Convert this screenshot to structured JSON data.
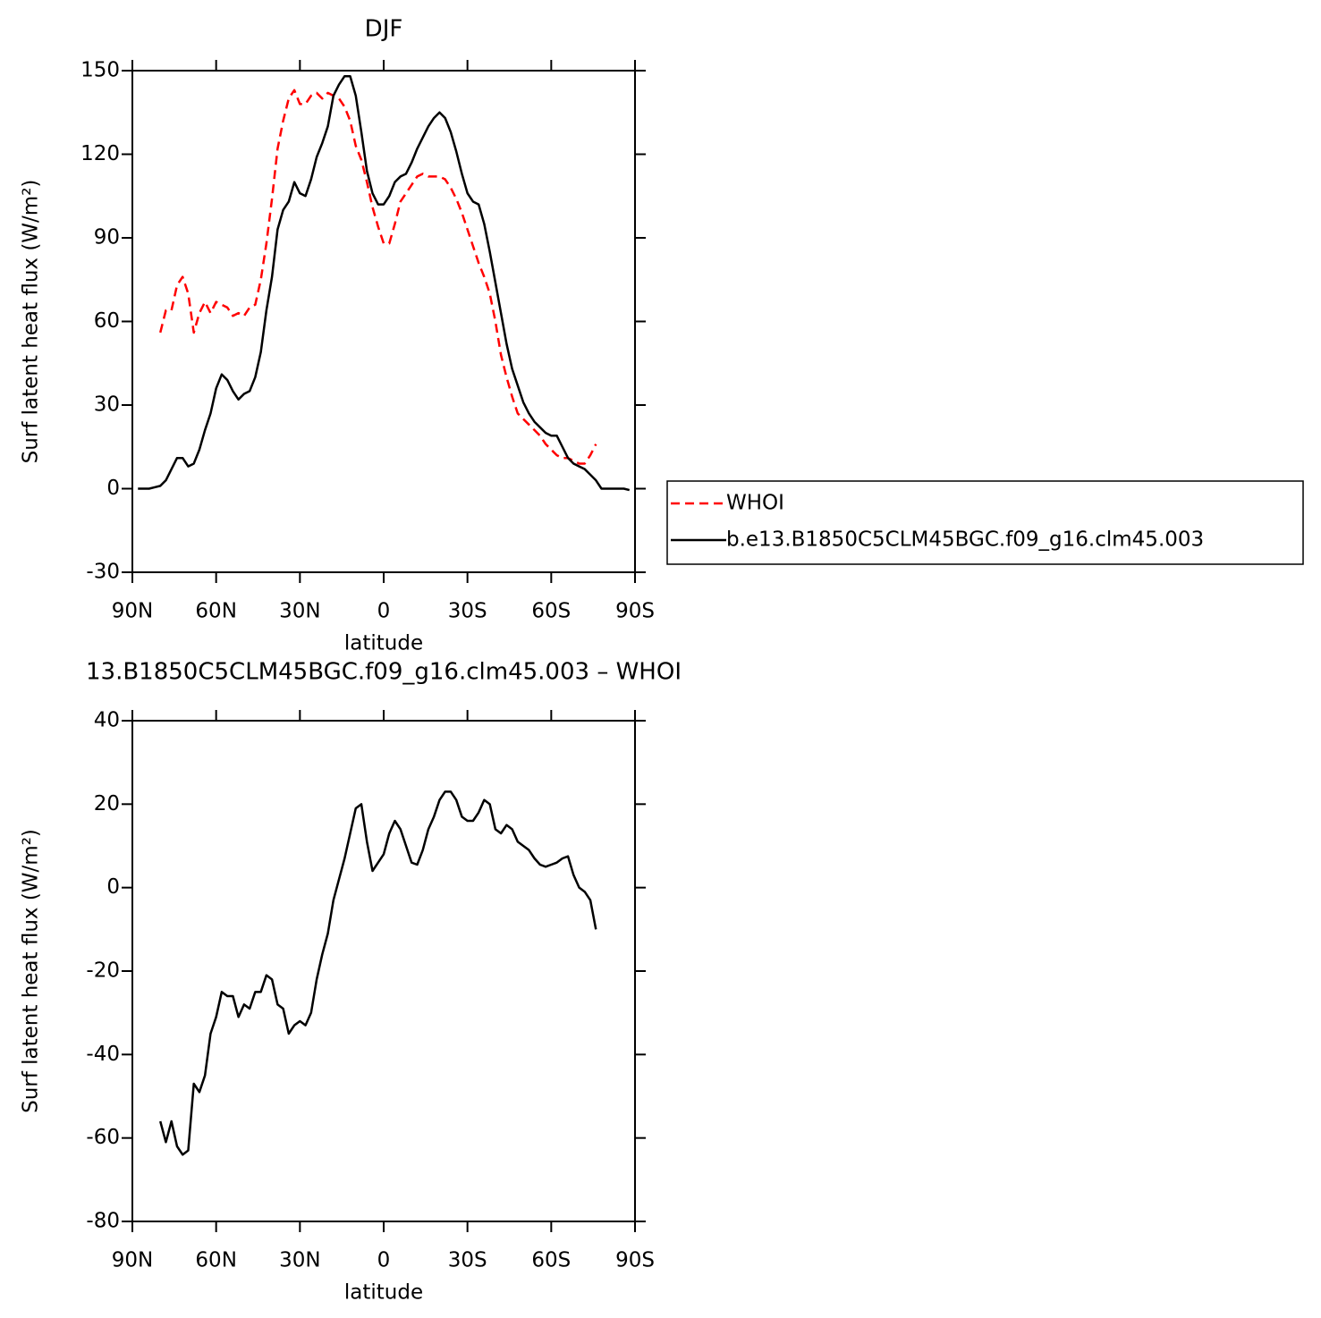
{
  "chart_data": [
    {
      "type": "line",
      "title": "DJF",
      "xlabel": "latitude",
      "ylabel": "Surf latent heat flux (W/m²)",
      "xlim": [
        90,
        -90
      ],
      "xticks": [
        {
          "value": 90,
          "label": "90N"
        },
        {
          "value": 60,
          "label": "60N"
        },
        {
          "value": 30,
          "label": "30N"
        },
        0,
        {
          "value": -30,
          "label": "30S"
        },
        {
          "value": -60,
          "label": "60S"
        },
        {
          "value": -90,
          "label": "90S"
        }
      ],
      "ylim": [
        -30,
        150
      ],
      "yticks": [
        -30,
        0,
        30,
        60,
        90,
        120,
        150
      ],
      "legend": "outside-right",
      "x": [
        88,
        86,
        84,
        82,
        80,
        78,
        76,
        74,
        72,
        70,
        68,
        66,
        64,
        62,
        60,
        58,
        56,
        54,
        52,
        50,
        48,
        46,
        44,
        42,
        40,
        38,
        36,
        34,
        32,
        30,
        28,
        26,
        24,
        22,
        20,
        18,
        16,
        14,
        12,
        10,
        8,
        6,
        4,
        2,
        0,
        -2,
        -4,
        -6,
        -8,
        -10,
        -12,
        -14,
        -16,
        -18,
        -20,
        -22,
        -24,
        -26,
        -28,
        -30,
        -32,
        -34,
        -36,
        -38,
        -40,
        -42,
        -44,
        -46,
        -48,
        -50,
        -52,
        -54,
        -56,
        -58,
        -60,
        -62,
        -64,
        -66,
        -68,
        -70,
        -72,
        -74,
        -76,
        -78,
        -80,
        -82,
        -84,
        -86,
        -88
      ],
      "series": [
        {
          "name": "WHOI",
          "color": "#ff0000",
          "line_style": "dashed",
          "values": [
            null,
            null,
            null,
            null,
            56,
            64,
            64,
            73,
            76,
            70,
            56,
            63,
            67,
            63,
            67,
            66,
            65,
            62,
            63,
            62,
            65,
            66,
            75,
            88,
            104,
            122,
            132,
            140,
            143,
            138,
            138,
            141,
            142,
            140,
            142,
            141,
            140,
            137,
            132,
            123,
            118,
            110,
            101,
            94,
            88,
            88,
            95,
            103,
            106,
            109,
            112,
            113,
            112,
            112,
            112,
            111,
            108,
            104,
            99,
            93,
            87,
            81,
            76,
            70,
            60,
            48,
            40,
            33,
            27,
            25,
            23,
            21,
            19,
            16,
            14,
            12,
            11,
            11,
            10,
            9,
            9,
            12,
            16,
            null,
            null,
            null,
            null,
            null,
            null
          ]
        },
        {
          "name": "b.e13.B1850C5CLM45BGC.f09_g16.clm45.003",
          "color": "#000000",
          "line_style": "solid",
          "values": [
            0,
            0,
            0,
            0.5,
            1,
            3,
            7,
            11,
            11,
            8,
            9,
            14,
            21,
            27,
            36,
            41,
            39,
            35,
            32,
            34,
            35,
            40,
            49,
            64,
            76,
            93,
            100,
            103,
            110,
            106,
            105,
            111,
            119,
            124,
            130,
            141,
            145,
            148,
            148,
            141,
            128,
            114,
            106,
            102,
            102,
            105,
            110,
            112,
            113,
            117,
            122,
            126,
            130,
            133,
            135,
            133,
            128,
            121,
            113,
            106,
            103,
            102,
            95,
            85,
            74,
            63,
            52,
            43,
            37,
            31,
            27,
            24,
            22,
            20,
            19,
            19,
            15,
            11,
            9,
            8,
            7,
            5,
            3,
            0,
            0,
            0,
            0,
            0,
            -0.5
          ]
        }
      ]
    },
    {
      "type": "line",
      "title": "13.B1850C5CLM45BGC.f09_g16.clm45.003 – WHOI",
      "xlabel": "latitude",
      "ylabel": "Surf latent heat flux (W/m²)",
      "xlim": [
        90,
        -90
      ],
      "xticks": [
        {
          "value": 90,
          "label": "90N"
        },
        {
          "value": 60,
          "label": "60N"
        },
        {
          "value": 30,
          "label": "30N"
        },
        0,
        {
          "value": -30,
          "label": "30S"
        },
        {
          "value": -60,
          "label": "60S"
        },
        {
          "value": -90,
          "label": "90S"
        }
      ],
      "ylim": [
        -80,
        40
      ],
      "yticks": [
        -80,
        -60,
        -40,
        -20,
        0,
        20,
        40
      ],
      "x": [
        80,
        78,
        76,
        74,
        72,
        70,
        68,
        66,
        64,
        62,
        60,
        58,
        56,
        54,
        52,
        50,
        48,
        46,
        44,
        42,
        40,
        38,
        36,
        34,
        32,
        30,
        28,
        26,
        24,
        22,
        20,
        18,
        16,
        14,
        12,
        10,
        8,
        6,
        4,
        2,
        0,
        -2,
        -4,
        -6,
        -8,
        -10,
        -12,
        -14,
        -16,
        -18,
        -20,
        -22,
        -24,
        -26,
        -28,
        -30,
        -32,
        -34,
        -36,
        -38,
        -40,
        -42,
        -44,
        -46,
        -48,
        -50,
        -52,
        -54,
        -56,
        -58,
        -60,
        -62,
        -64,
        -66,
        -68,
        -70,
        -72,
        -74,
        -76
      ],
      "series": [
        {
          "color": "#000000",
          "line_style": "solid",
          "values": [
            -56,
            -61,
            -56,
            -62,
            -64,
            -63,
            -47,
            -49,
            -45,
            -35,
            -31,
            -25,
            -26,
            -26,
            -31,
            -28,
            -29,
            -25,
            -25,
            -21,
            -22,
            -28,
            -29,
            -35,
            -33,
            -32,
            -33,
            -30,
            -22,
            -16,
            -11,
            -3,
            2,
            7,
            13,
            19,
            20,
            11,
            4,
            6,
            8,
            13,
            16,
            14,
            10,
            6,
            5.5,
            9,
            14,
            17,
            21,
            23,
            23,
            21,
            17,
            16,
            16,
            18,
            21,
            20,
            14,
            13,
            15,
            14,
            11,
            10,
            9,
            7,
            5.5,
            5,
            5.5,
            6,
            7,
            7.5,
            3,
            0,
            -1,
            -3,
            -10
          ]
        }
      ]
    }
  ]
}
